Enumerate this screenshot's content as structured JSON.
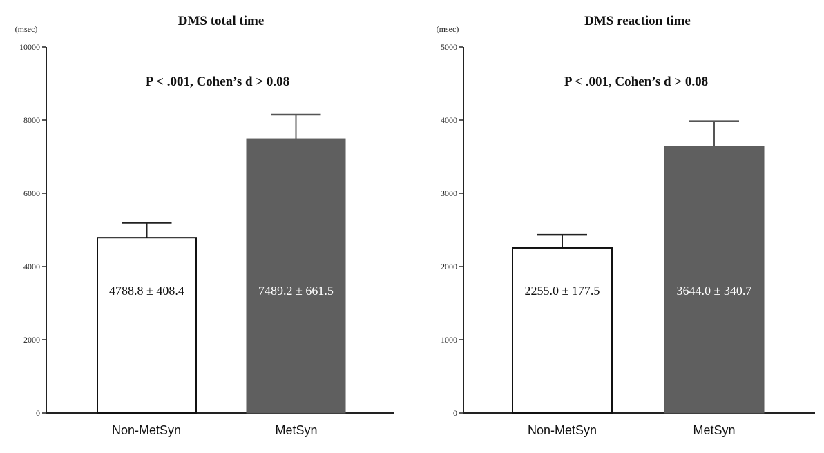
{
  "chart_data": [
    {
      "type": "bar",
      "title": "DMS total time",
      "ylabel": "(msec)",
      "annotation": "P < .001, Cohen’s d > 0.08",
      "categories": [
        "Non-MetSyn",
        "MetSyn"
      ],
      "values": [
        4788.8,
        7489.2
      ],
      "errors": [
        408.4,
        661.5
      ],
      "bar_labels": [
        "4788.8 ± 408.4",
        "7489.2 ± 661.5"
      ],
      "bar_colors": [
        "#ffffff",
        "#5f5f5f"
      ],
      "ylim": [
        0,
        10000
      ],
      "yticks": [
        "0",
        "2000",
        "4000",
        "6000",
        "8000",
        "10000"
      ],
      "grid": false,
      "legend": "none"
    },
    {
      "type": "bar",
      "title": "DMS reaction time",
      "ylabel": "(msec)",
      "annotation": "P < .001, Cohen’s d > 0.08",
      "categories": [
        "Non-MetSyn",
        "MetSyn"
      ],
      "values": [
        2255.0,
        3644.0
      ],
      "errors": [
        177.5,
        340.7
      ],
      "bar_labels": [
        "2255.0 ± 177.5",
        "3644.0 ± 340.7"
      ],
      "bar_colors": [
        "#ffffff",
        "#5f5f5f"
      ],
      "ylim": [
        0,
        5000
      ],
      "yticks": [
        "0",
        "1000",
        "2000",
        "3000",
        "4000",
        "5000"
      ],
      "grid": false,
      "legend": "none"
    }
  ]
}
